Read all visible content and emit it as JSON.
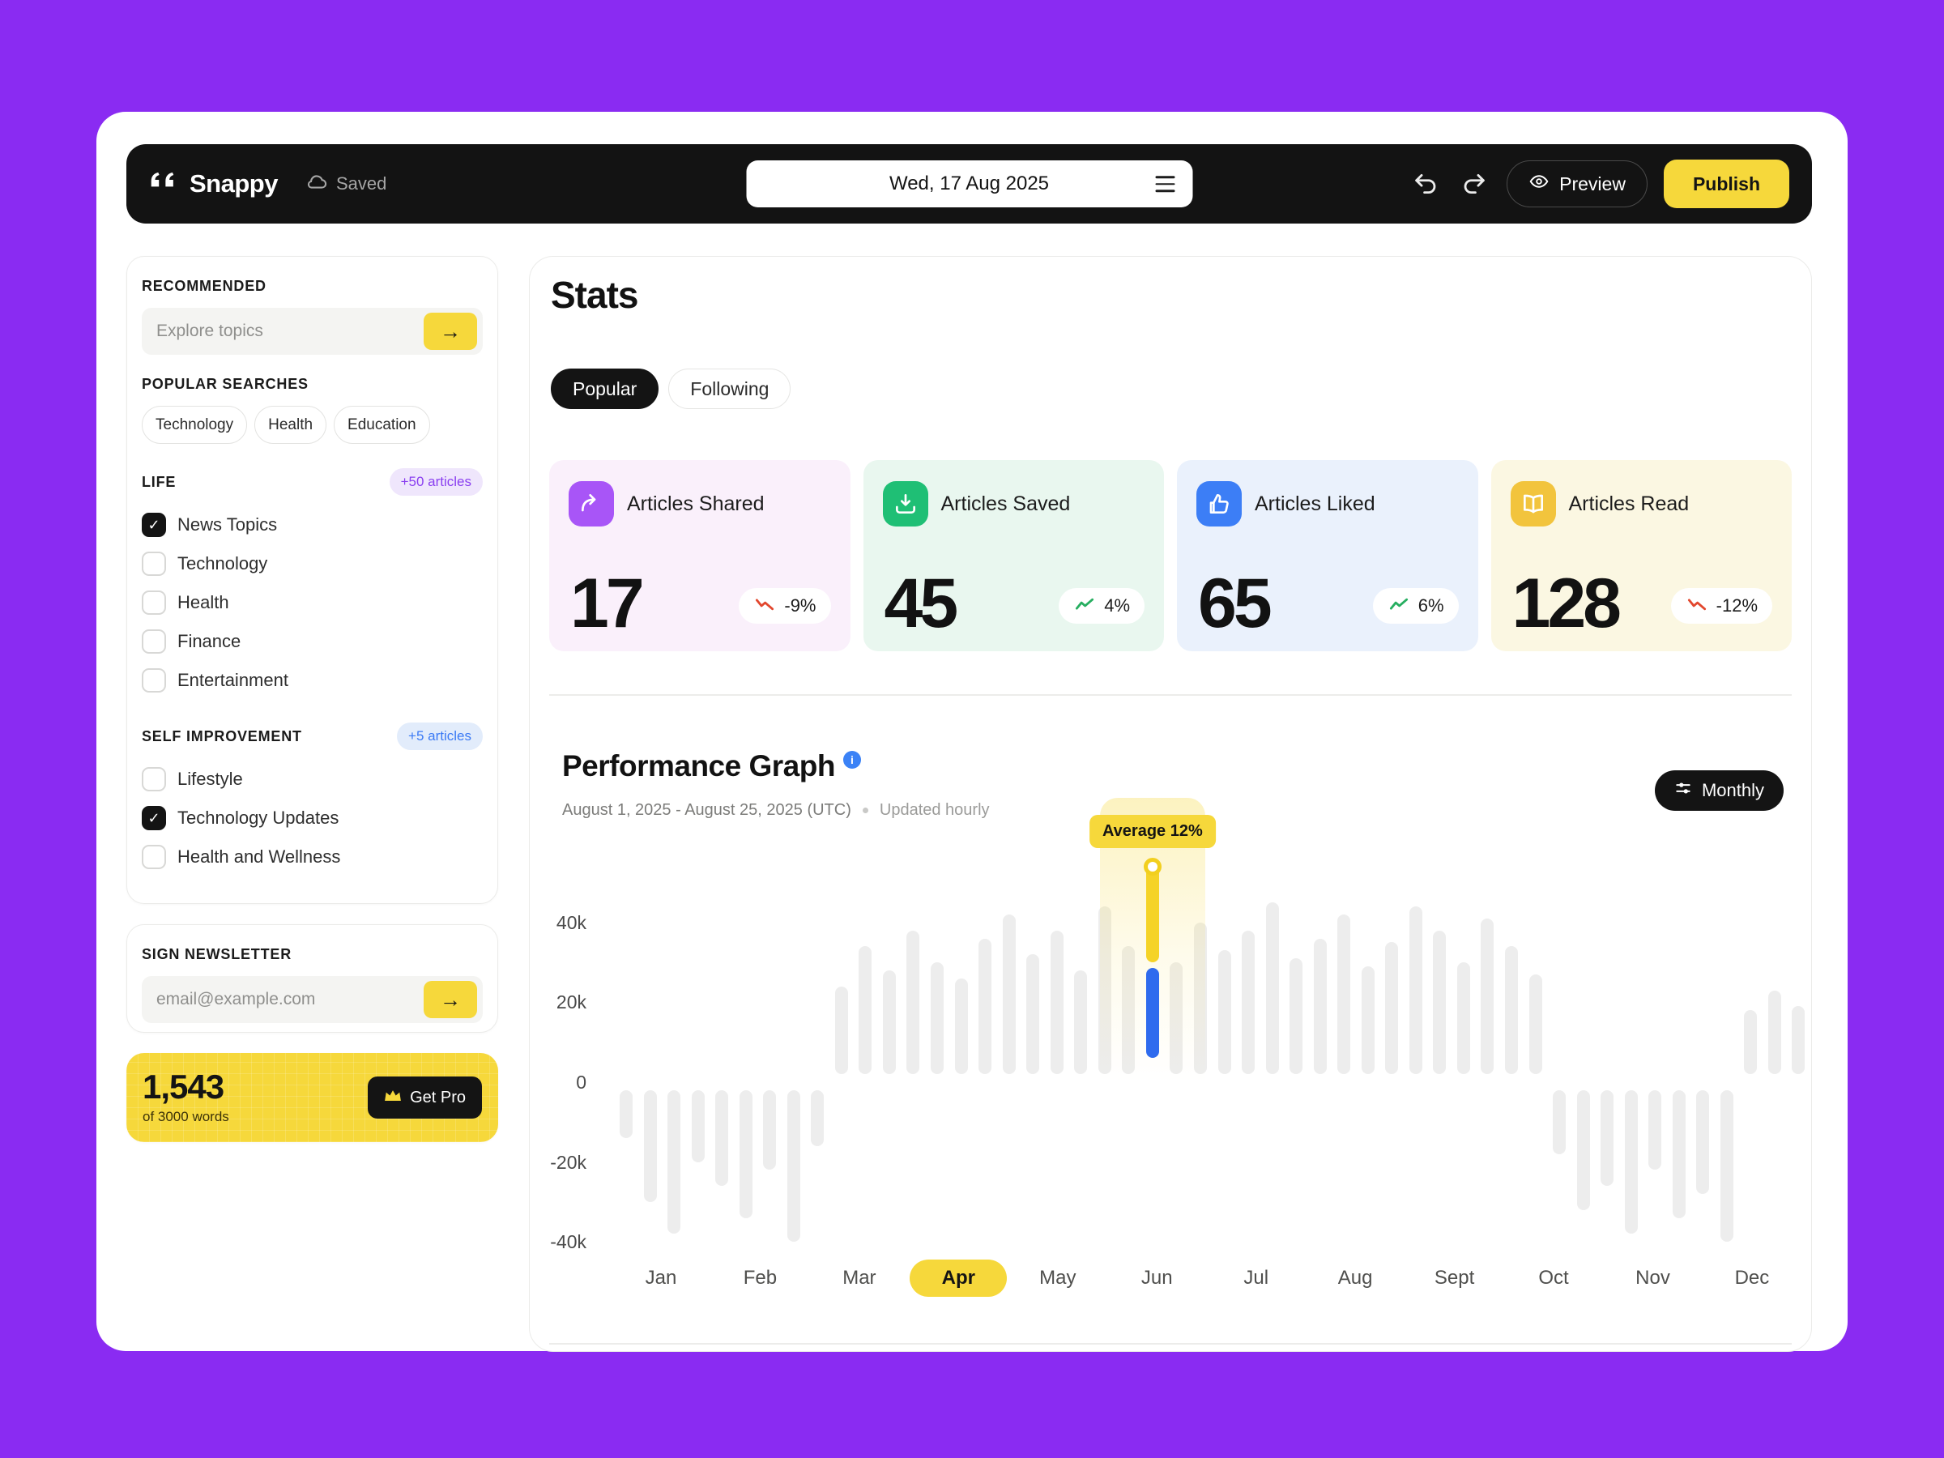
{
  "app": {
    "name": "Snappy",
    "saved_label": "Saved",
    "date": "Wed, 17 Aug 2025",
    "preview_label": "Preview",
    "publish_label": "Publish"
  },
  "sidebar": {
    "recommended_label": "RECOMMENDED",
    "explore_placeholder": "Explore topics",
    "popular_searches_label": "POPULAR SEARCHES",
    "search_pills": [
      "Technology",
      "Health",
      "Education"
    ],
    "life": {
      "label": "LIFE",
      "badge": "+50 articles",
      "items": [
        {
          "label": "News Topics",
          "checked": true
        },
        {
          "label": "Technology",
          "checked": false
        },
        {
          "label": "Health",
          "checked": false
        },
        {
          "label": "Finance",
          "checked": false
        },
        {
          "label": "Entertainment",
          "checked": false
        }
      ]
    },
    "self_improvement": {
      "label": "SELF IMPROVEMENT",
      "badge": "+5 articles",
      "items": [
        {
          "label": "Lifestyle",
          "checked": false
        },
        {
          "label": "Technology Updates",
          "checked": true
        },
        {
          "label": "Health and Wellness",
          "checked": false
        }
      ]
    },
    "newsletter": {
      "label": "SIGN NEWSLETTER",
      "placeholder": "email@example.com"
    },
    "words": {
      "count": "1,543",
      "of": "of 3000 words",
      "cta": "Get Pro"
    }
  },
  "main": {
    "title": "Stats",
    "tabs": [
      {
        "label": "Popular",
        "active": true
      },
      {
        "label": "Following",
        "active": false
      }
    ],
    "stat_cards": [
      {
        "label": "Articles Shared",
        "value": "17",
        "delta": "-9%",
        "trend": "down",
        "accent": "#a855f7",
        "bg": "#faf0fb",
        "icon": "share"
      },
      {
        "label": "Articles Saved",
        "value": "45",
        "delta": "4%",
        "trend": "up",
        "accent": "#1fbf75",
        "bg": "#e9f7ef",
        "icon": "save"
      },
      {
        "label": "Articles Liked",
        "value": "65",
        "delta": "6%",
        "trend": "up",
        "accent": "#3c7ef6",
        "bg": "#eaf1fc",
        "icon": "like"
      },
      {
        "label": "Articles Read",
        "value": "128",
        "delta": "-12%",
        "trend": "down",
        "accent": "#f2c43d",
        "bg": "#fbf7e2",
        "icon": "read"
      }
    ],
    "graph": {
      "title": "Performance Graph",
      "info_icon": "i",
      "date_range": "August 1, 2025 - August 25, 2025 (UTC)",
      "updated": "Updated hourly",
      "period_label": "Monthly"
    }
  },
  "colors": {
    "brand_purple": "#8a2bf2",
    "accent_yellow": "#f6d83b",
    "bar_gray": "#ededed",
    "trend_up_green": "#27ae60",
    "trend_down_red": "#e2472e"
  },
  "chart_data": {
    "type": "bar",
    "title": "Performance Graph",
    "x_labels": [
      "Jan",
      "Feb",
      "Mar",
      "Apr",
      "May",
      "Jun",
      "Jul",
      "Aug",
      "Sept",
      "Oct",
      "Nov",
      "Dec"
    ],
    "active_month": "Apr",
    "y_ticks": [
      "40k",
      "20k",
      "0",
      "-20k",
      "-40k"
    ],
    "ylim_k": [
      -46,
      56
    ],
    "grid": false,
    "values_k": [
      -14,
      -30,
      -38,
      -20,
      -26,
      -34,
      -22,
      -40,
      -16,
      24,
      34,
      28,
      38,
      30,
      26,
      36,
      42,
      32,
      38,
      28,
      44,
      34,
      54,
      30,
      40,
      33,
      38,
      45,
      31,
      36,
      42,
      29,
      35,
      44,
      38,
      30,
      41,
      34,
      27,
      -18,
      -32,
      -26,
      -38,
      -22,
      -34,
      -28,
      -40,
      18,
      23,
      19
    ],
    "highlight": {
      "index": 22,
      "tooltip": "Average 12%",
      "segments": [
        {
          "name": "primary",
          "color": "#f5d327",
          "from_k": 30,
          "to_k": 54
        },
        {
          "name": "secondary",
          "color": "#2f6bee",
          "from_k": 6,
          "to_k": 28.5
        }
      ]
    }
  }
}
